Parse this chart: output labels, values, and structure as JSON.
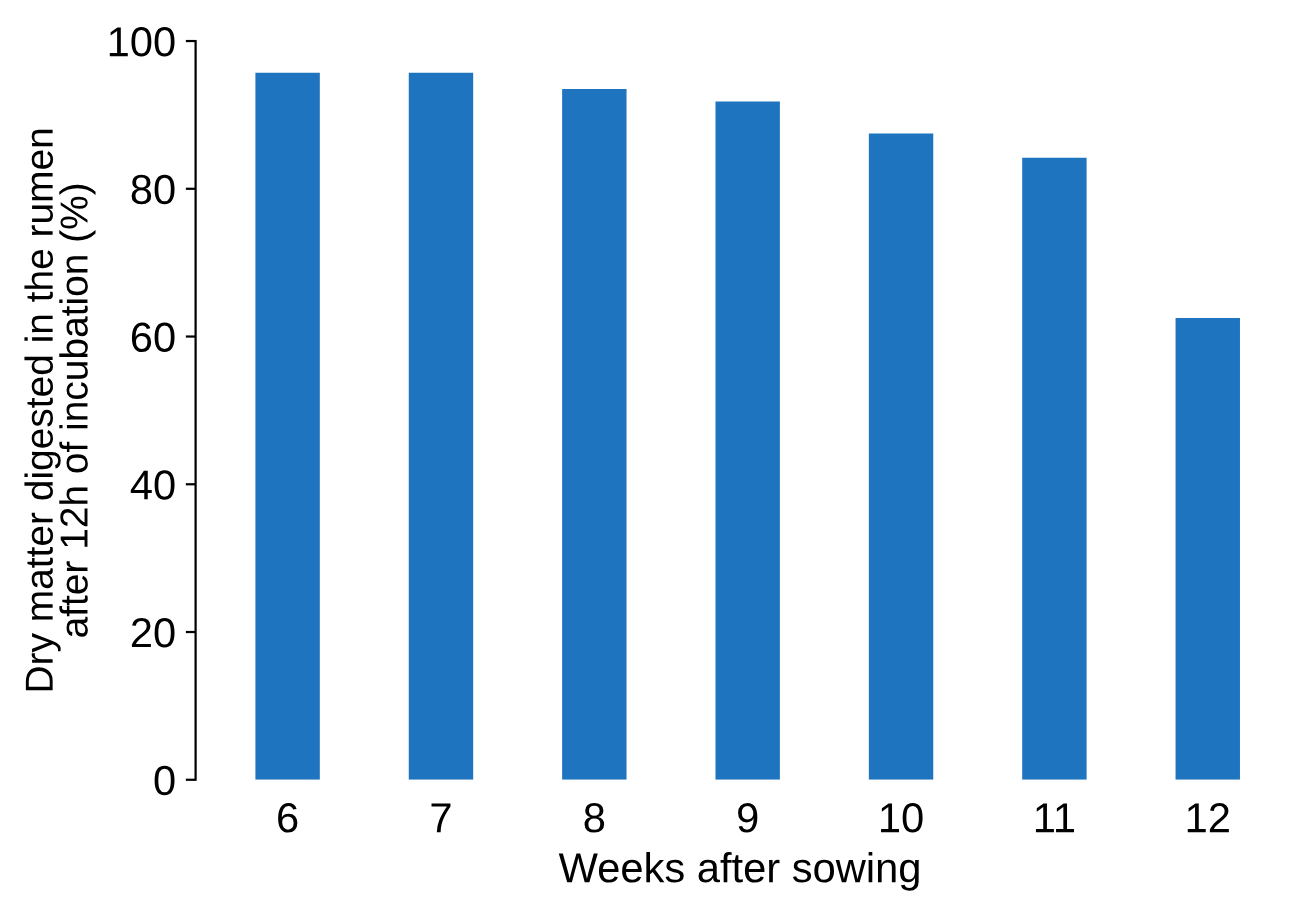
{
  "chart_data": {
    "type": "bar",
    "xlabel": "Weeks after sowing",
    "ylabel": "Dry matter digested in the rumen\nafter 12h of incubation (%)",
    "categories": [
      "6",
      "7",
      "8",
      "9",
      "10",
      "11",
      "12"
    ],
    "values": [
      95.7,
      95.7,
      93.5,
      91.8,
      87.5,
      84.2,
      62.5
    ],
    "color": "#1f74bf",
    "ylim": [
      0,
      100
    ],
    "yticks": [
      0,
      20,
      40,
      60,
      80,
      100
    ],
    "grid": false
  }
}
